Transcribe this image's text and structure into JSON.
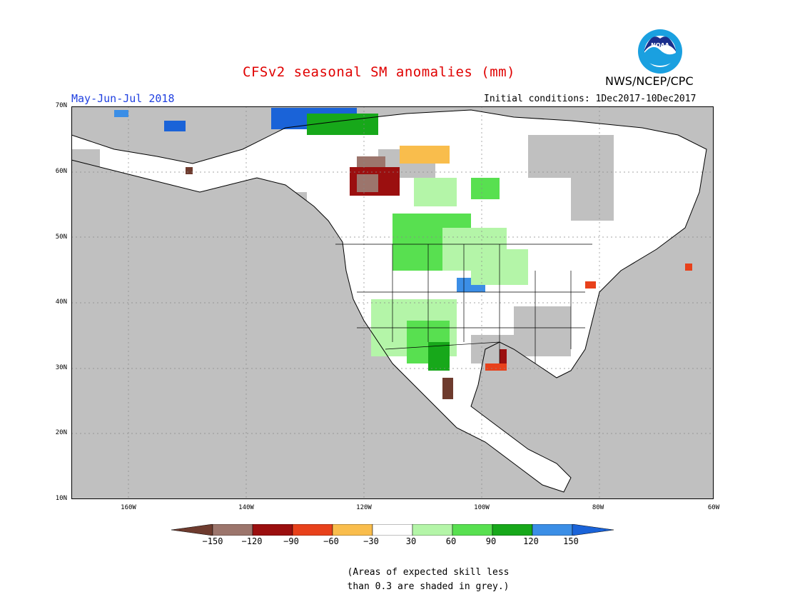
{
  "header": {
    "title": "CFSv2 seasonal SM anomalies (mm)",
    "season": "May-Jun-Jul 2018",
    "initial_conditions": "Initial conditions: 1Dec2017-10Dec2017",
    "agency": "NWS/NCEP/CPC",
    "logo_text": "NOAA"
  },
  "map": {
    "y_axis_labels": [
      "70N",
      "60N",
      "50N",
      "40N",
      "30N",
      "20N",
      "10N"
    ],
    "x_axis_labels": [
      "160W",
      "140W",
      "120W",
      "100W",
      "80W",
      "60W"
    ],
    "colors": {
      "grey_low_skill": "#c0c0c0",
      "land_outline": "#000000",
      "ocean": "#c0c0c0"
    }
  },
  "colorbar": {
    "labels": [
      "−150",
      "−120",
      "−90",
      "−60",
      "−30",
      "30",
      "60",
      "90",
      "120",
      "150"
    ],
    "colors": [
      "#6e3b2e",
      "#9c756c",
      "#9b0f0f",
      "#e8411b",
      "#f9bd4c",
      "#ffffff",
      "#b4f5a8",
      "#58e050",
      "#17a81a",
      "#3b8ee6",
      "#1a63d8"
    ]
  },
  "note": {
    "line1": "(Areas of expected skill less",
    "line2": "than 0.3 are shaded in grey.)"
  }
}
